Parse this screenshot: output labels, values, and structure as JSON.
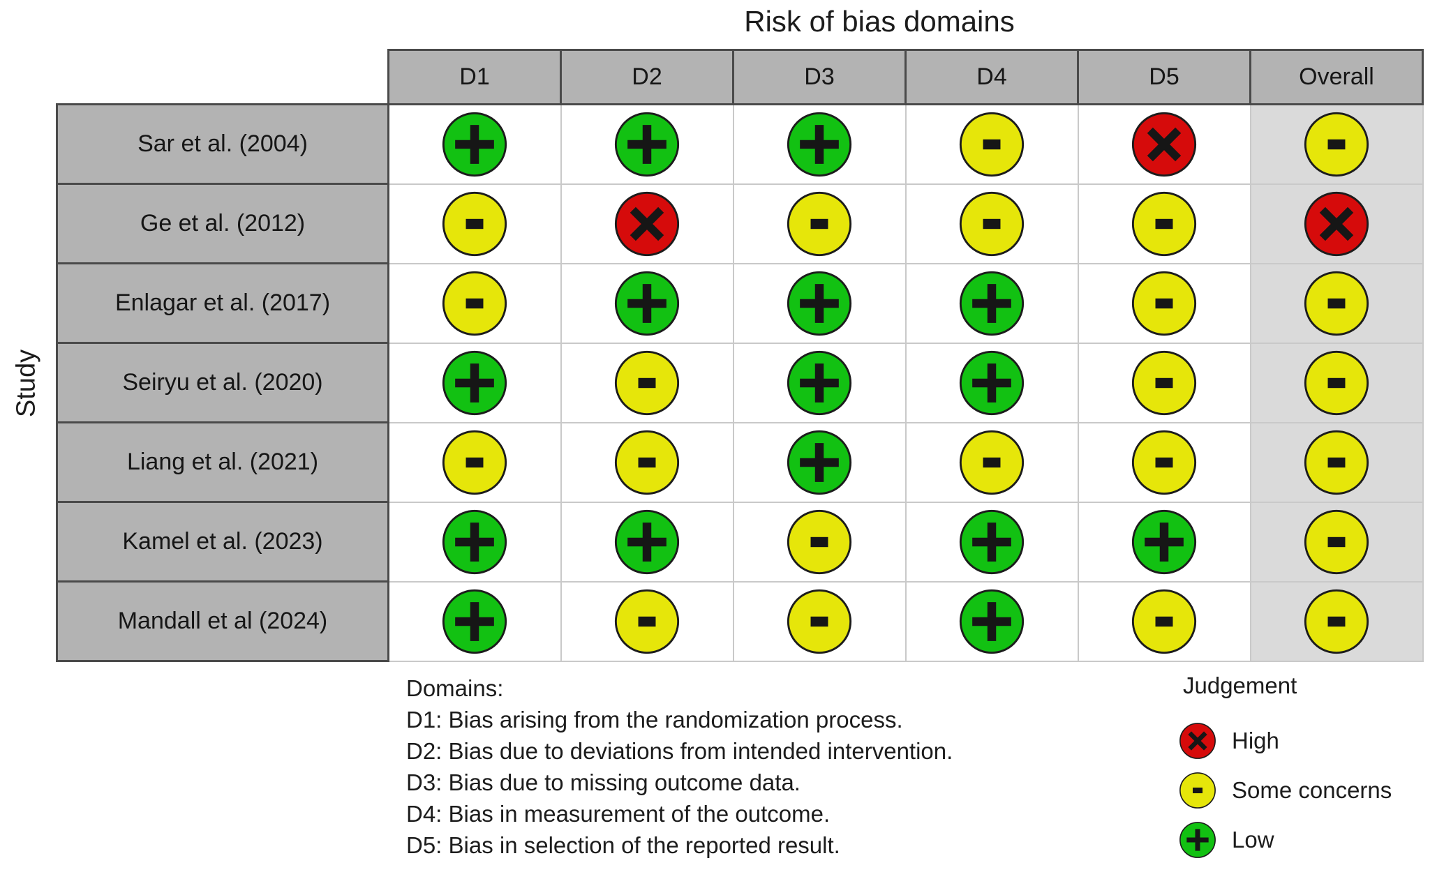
{
  "title": "Risk of bias domains",
  "axis_label": "Study",
  "columns": [
    "D1",
    "D2",
    "D3",
    "D4",
    "D5",
    "Overall"
  ],
  "studies": [
    {
      "label": "Sar et al. (2004)",
      "judgements": [
        "low",
        "low",
        "low",
        "some",
        "high",
        "some"
      ]
    },
    {
      "label": "Ge et al. (2012)",
      "judgements": [
        "some",
        "high",
        "some",
        "some",
        "some",
        "high"
      ]
    },
    {
      "label": "Enlagar et al. (2017)",
      "judgements": [
        "some",
        "low",
        "low",
        "low",
        "some",
        "some"
      ]
    },
    {
      "label": "Seiryu et al. (2020)",
      "judgements": [
        "low",
        "some",
        "low",
        "low",
        "some",
        "some"
      ]
    },
    {
      "label": "Liang et al. (2021)",
      "judgements": [
        "some",
        "some",
        "low",
        "some",
        "some",
        "some"
      ]
    },
    {
      "label": "Kamel et al. (2023)",
      "judgements": [
        "low",
        "low",
        "some",
        "low",
        "low",
        "some"
      ]
    },
    {
      "label": "Mandall et al (2024)",
      "judgements": [
        "low",
        "some",
        "some",
        "low",
        "some",
        "some"
      ]
    }
  ],
  "judgement_styles": {
    "high": {
      "label": "High",
      "color": "#D60B0B",
      "symbol": "x",
      "symbol_name": "x-icon"
    },
    "some": {
      "label": "Some concerns",
      "color": "#E6E60A",
      "symbol": "minus",
      "symbol_name": "minus-icon"
    },
    "low": {
      "label": "Low",
      "color": "#12C112",
      "symbol": "plus",
      "symbol_name": "plus-icon"
    }
  },
  "domains_note": {
    "heading": "Domains:",
    "items": [
      "D1: Bias arising from the randomization process.",
      "D2: Bias due to deviations from intended intervention.",
      "D3: Bias due to missing outcome data.",
      "D4: Bias in measurement of the outcome.",
      "D5: Bias in selection of the reported result."
    ]
  },
  "legend": {
    "heading": "Judgement",
    "items": [
      {
        "key": "high",
        "label": "High"
      },
      {
        "key": "some",
        "label": "Some concerns"
      },
      {
        "key": "low",
        "label": "Low"
      }
    ]
  },
  "colors": {
    "header_bg": "#B3B3B3",
    "row_label_bg": "#B3B3B3",
    "overall_col_bg": "#DADADA",
    "dark_border": "#4a4a4a",
    "light_grid": "#c9c9c9",
    "high_red": "#D60B0B",
    "some_concerns_yellow": "#E6E60A",
    "low_green": "#12C112"
  },
  "chart_data": {
    "type": "table",
    "title": "Risk of bias domains",
    "row_axis_label": "Study",
    "columns": [
      "D1",
      "D2",
      "D3",
      "D4",
      "D5",
      "Overall"
    ],
    "rows": [
      {
        "study": "Sar et al. (2004)",
        "values": [
          "Low",
          "Low",
          "Low",
          "Some concerns",
          "High",
          "Some concerns"
        ]
      },
      {
        "study": "Ge et al. (2012)",
        "values": [
          "Some concerns",
          "High",
          "Some concerns",
          "Some concerns",
          "Some concerns",
          "High"
        ]
      },
      {
        "study": "Enlagar et al. (2017)",
        "values": [
          "Some concerns",
          "Low",
          "Low",
          "Low",
          "Some concerns",
          "Some concerns"
        ]
      },
      {
        "study": "Seiryu et al. (2020)",
        "values": [
          "Low",
          "Some concerns",
          "Low",
          "Low",
          "Some concerns",
          "Some concerns"
        ]
      },
      {
        "study": "Liang et al. (2021)",
        "values": [
          "Some concerns",
          "Some concerns",
          "Low",
          "Some concerns",
          "Some concerns",
          "Some concerns"
        ]
      },
      {
        "study": "Kamel et al. (2023)",
        "values": [
          "Low",
          "Low",
          "Some concerns",
          "Low",
          "Low",
          "Some concerns"
        ]
      },
      {
        "study": "Mandall et al (2024)",
        "values": [
          "Low",
          "Some concerns",
          "Some concerns",
          "Low",
          "Some concerns",
          "Some concerns"
        ]
      }
    ],
    "legend": [
      {
        "judgement": "High",
        "symbol": "X",
        "color": "#D60B0B"
      },
      {
        "judgement": "Some concerns",
        "symbol": "-",
        "color": "#E6E60A"
      },
      {
        "judgement": "Low",
        "symbol": "+",
        "color": "#12C112"
      }
    ],
    "footnotes": [
      "D1: Bias arising from the randomization process.",
      "D2: Bias due to deviations from intended intervention.",
      "D3: Bias due to missing outcome data.",
      "D4: Bias in measurement of the outcome.",
      "D5: Bias in selection of the reported result."
    ]
  }
}
